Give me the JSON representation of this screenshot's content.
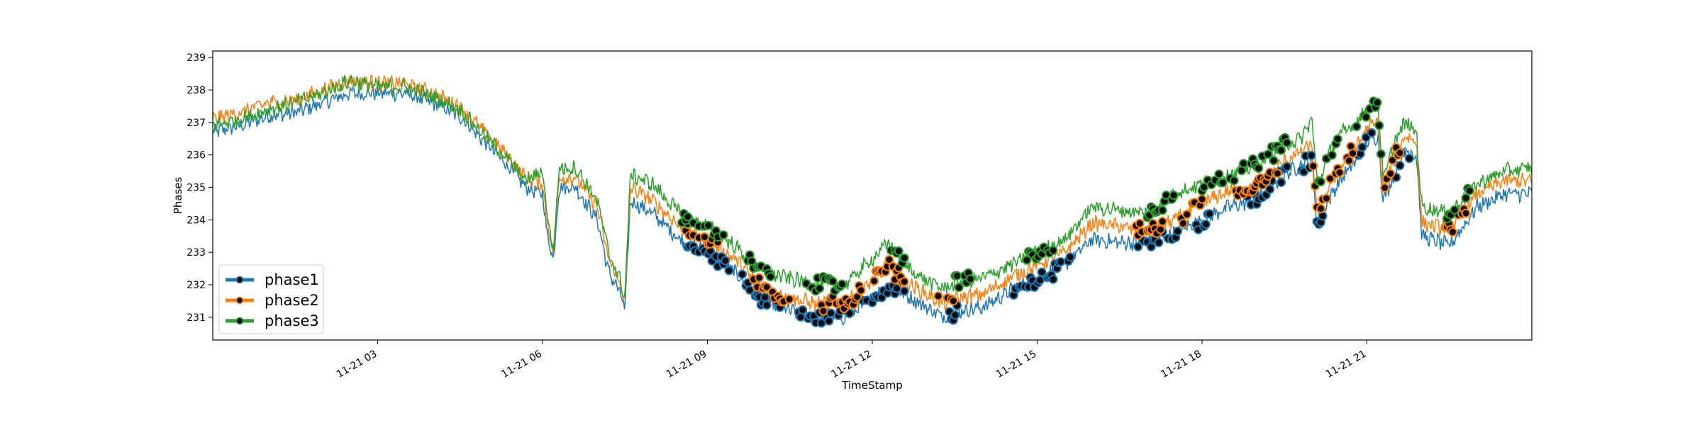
{
  "chart_data": {
    "type": "line",
    "xlabel": "TimeStamp",
    "ylabel": "Phases",
    "x_range": [
      "2023-11-21 00:00",
      "2023-11-22 00:00"
    ],
    "ylim": [
      230.3,
      239.2
    ],
    "y_ticks": [
      231,
      232,
      233,
      234,
      235,
      236,
      237,
      238,
      239
    ],
    "x_ticks": [
      {
        "t": 3,
        "label": "11-21 03"
      },
      {
        "t": 6,
        "label": "11-21 06"
      },
      {
        "t": 9,
        "label": "11-21 09"
      },
      {
        "t": 12,
        "label": "11-21 12"
      },
      {
        "t": 15,
        "label": "11-21 15"
      },
      {
        "t": 18,
        "label": "11-21 18"
      },
      {
        "t": 21,
        "label": "11-21 21"
      }
    ],
    "legend_position": "lower-left",
    "grid": false,
    "series": [
      {
        "name": "phase1",
        "color": "#1f77b4",
        "x_hours": [
          0.0,
          0.5,
          1.0,
          1.5,
          2.0,
          2.5,
          3.0,
          3.5,
          4.0,
          4.5,
          5.0,
          5.3,
          5.7,
          6.0,
          6.1,
          6.2,
          6.3,
          6.6,
          7.0,
          7.2,
          7.4,
          7.5,
          7.6,
          8.0,
          8.5,
          9.0,
          9.5,
          10.0,
          10.5,
          11.0,
          11.5,
          12.0,
          12.3,
          12.6,
          13.0,
          13.3,
          13.6,
          14.0,
          14.5,
          15.0,
          15.5,
          16.0,
          16.5,
          17.0,
          17.5,
          18.0,
          18.5,
          19.0,
          19.5,
          19.8,
          20.0,
          20.1,
          20.3,
          20.5,
          20.8,
          21.0,
          21.2,
          21.3,
          21.5,
          21.7,
          21.9,
          22.0,
          22.5,
          23.0,
          23.5,
          24.0
        ],
        "values": [
          236.7,
          236.9,
          237.2,
          237.3,
          237.6,
          237.9,
          237.9,
          237.9,
          237.6,
          237.2,
          236.3,
          235.8,
          235.0,
          234.8,
          233.4,
          232.8,
          235.0,
          235.0,
          234.0,
          232.4,
          231.8,
          231.2,
          234.6,
          234.2,
          233.4,
          233.0,
          232.4,
          231.5,
          231.2,
          231.0,
          231.0,
          231.6,
          232.0,
          231.7,
          231.3,
          231.0,
          231.2,
          231.3,
          231.8,
          232.2,
          232.6,
          233.4,
          233.3,
          233.3,
          233.6,
          234.0,
          234.4,
          234.6,
          235.4,
          235.7,
          235.8,
          233.8,
          234.6,
          235.2,
          235.8,
          236.4,
          236.6,
          234.6,
          235.4,
          236.2,
          236.0,
          233.5,
          233.2,
          234.4,
          234.8,
          234.8
        ]
      },
      {
        "name": "phase2",
        "color": "#ff7f0e",
        "x_hours": [
          0.0,
          0.5,
          1.0,
          1.5,
          2.0,
          2.5,
          3.0,
          3.5,
          4.0,
          4.5,
          5.0,
          5.3,
          5.7,
          6.0,
          6.1,
          6.2,
          6.3,
          6.6,
          7.0,
          7.2,
          7.4,
          7.5,
          7.6,
          8.0,
          8.5,
          9.0,
          9.5,
          10.0,
          10.5,
          11.0,
          11.5,
          12.0,
          12.3,
          12.6,
          13.0,
          13.3,
          13.6,
          14.0,
          14.5,
          15.0,
          15.5,
          16.0,
          16.5,
          17.0,
          17.5,
          18.0,
          18.5,
          19.0,
          19.5,
          19.8,
          20.0,
          20.1,
          20.3,
          20.5,
          20.8,
          21.0,
          21.2,
          21.3,
          21.5,
          21.7,
          21.9,
          22.0,
          22.5,
          23.0,
          23.5,
          24.0
        ],
        "values": [
          237.1,
          237.3,
          237.6,
          237.7,
          238.0,
          238.3,
          238.2,
          238.2,
          237.9,
          237.5,
          236.6,
          236.1,
          235.3,
          235.1,
          233.8,
          233.0,
          235.3,
          235.3,
          234.4,
          232.8,
          232.1,
          231.5,
          235.0,
          234.6,
          233.8,
          233.4,
          232.8,
          231.9,
          231.6,
          231.4,
          231.4,
          232.1,
          232.6,
          232.1,
          231.7,
          231.4,
          231.6,
          231.7,
          232.2,
          232.6,
          233.0,
          233.9,
          233.8,
          233.6,
          234.0,
          234.5,
          234.9,
          235.0,
          235.8,
          236.1,
          236.3,
          234.0,
          235.0,
          235.6,
          236.2,
          236.8,
          237.0,
          234.9,
          235.9,
          236.6,
          236.4,
          233.9,
          233.7,
          234.8,
          235.2,
          235.2
        ]
      },
      {
        "name": "phase3",
        "color": "#2ca02c",
        "x_hours": [
          0.0,
          0.5,
          1.0,
          1.5,
          2.0,
          2.5,
          3.0,
          3.5,
          4.0,
          4.5,
          5.0,
          5.3,
          5.7,
          6.0,
          6.1,
          6.2,
          6.3,
          6.6,
          7.0,
          7.2,
          7.4,
          7.5,
          7.6,
          8.0,
          8.5,
          9.0,
          9.5,
          10.0,
          10.5,
          11.0,
          11.5,
          12.0,
          12.3,
          12.6,
          13.0,
          13.3,
          13.6,
          14.0,
          14.5,
          15.0,
          15.5,
          16.0,
          16.5,
          17.0,
          17.5,
          18.0,
          18.5,
          19.0,
          19.5,
          19.8,
          20.0,
          20.1,
          20.3,
          20.5,
          20.8,
          21.0,
          21.2,
          21.3,
          21.5,
          21.7,
          21.9,
          22.0,
          22.5,
          23.0,
          23.5,
          24.0
        ],
        "values": [
          236.9,
          237.1,
          237.4,
          237.6,
          237.9,
          238.3,
          238.1,
          238.1,
          237.8,
          237.4,
          236.5,
          236.0,
          235.2,
          235.5,
          234.0,
          233.0,
          235.6,
          235.6,
          234.6,
          233.0,
          232.2,
          231.6,
          235.4,
          235.1,
          234.2,
          233.8,
          233.2,
          232.4,
          232.2,
          232.0,
          232.0,
          232.8,
          233.3,
          232.6,
          232.1,
          231.9,
          232.1,
          232.2,
          232.6,
          233.0,
          233.4,
          234.4,
          234.3,
          234.2,
          234.8,
          235.1,
          235.4,
          235.7,
          236.3,
          236.5,
          237.1,
          235.0,
          236.0,
          236.6,
          237.0,
          237.4,
          237.6,
          235.2,
          236.4,
          237.0,
          236.7,
          234.4,
          234.2,
          235.1,
          235.5,
          235.6
        ]
      }
    ],
    "marked_points": {
      "note": "Windows (hours) in which individual readings are highlighted with dark round markers",
      "phase1_windows": [
        [
          8.6,
          9.4
        ],
        [
          9.6,
          10.4
        ],
        [
          10.6,
          11.6
        ],
        [
          11.8,
          12.6
        ],
        [
          13.2,
          13.6
        ],
        [
          14.5,
          15.6
        ],
        [
          16.8,
          17.6
        ],
        [
          17.8,
          18.2
        ],
        [
          18.8,
          19.6
        ],
        [
          19.8,
          20.2
        ],
        [
          20.8,
          21.1
        ],
        [
          21.5,
          21.8
        ]
      ],
      "phase2_windows": [
        [
          8.6,
          9.2
        ],
        [
          9.8,
          10.5
        ],
        [
          11.0,
          11.8
        ],
        [
          12.0,
          12.6
        ],
        [
          13.2,
          13.5
        ],
        [
          16.8,
          17.3
        ],
        [
          17.6,
          18.0
        ],
        [
          18.6,
          19.4
        ],
        [
          20.0,
          20.8
        ],
        [
          21.3,
          21.6
        ],
        [
          22.4,
          22.8
        ]
      ],
      "phase3_windows": [
        [
          8.5,
          9.3
        ],
        [
          9.7,
          10.2
        ],
        [
          10.8,
          11.5
        ],
        [
          12.2,
          12.6
        ],
        [
          13.5,
          13.8
        ],
        [
          14.8,
          15.3
        ],
        [
          17.0,
          17.5
        ],
        [
          18.0,
          18.6
        ],
        [
          18.7,
          19.6
        ],
        [
          20.1,
          20.5
        ],
        [
          20.8,
          21.3
        ],
        [
          22.4,
          22.9
        ]
      ]
    }
  }
}
